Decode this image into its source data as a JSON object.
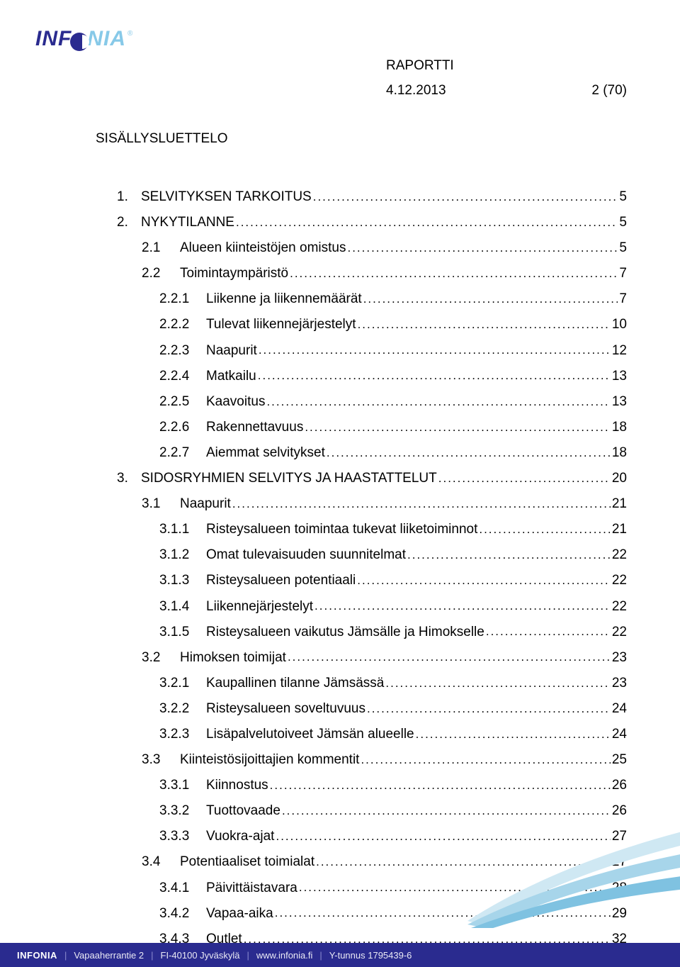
{
  "logo": {
    "left": "INF",
    "right": "NIA"
  },
  "header": {
    "title": "RAPORTTI",
    "date": "4.12.2013",
    "page": "2 (70)"
  },
  "section_title": "SISÄLLYSLUETTELO",
  "toc": [
    {
      "level": 1,
      "num": "1.",
      "label": "SELVITYKSEN TARKOITUS",
      "page": "5"
    },
    {
      "level": 1,
      "num": "2.",
      "label": "NYKYTILANNE",
      "page": "5"
    },
    {
      "level": 2,
      "num": "2.1",
      "label": "Alueen kiinteistöjen omistus",
      "page": "5"
    },
    {
      "level": 2,
      "num": "2.2",
      "label": "Toimintaympäristö",
      "page": "7"
    },
    {
      "level": 3,
      "num": "2.2.1",
      "label": "Liikenne ja liikennemäärät",
      "page": "7"
    },
    {
      "level": 3,
      "num": "2.2.2",
      "label": "Tulevat liikennejärjestelyt",
      "page": "10"
    },
    {
      "level": 3,
      "num": "2.2.3",
      "label": "Naapurit",
      "page": "12"
    },
    {
      "level": 3,
      "num": "2.2.4",
      "label": "Matkailu",
      "page": "13"
    },
    {
      "level": 3,
      "num": "2.2.5",
      "label": "Kaavoitus",
      "page": "13"
    },
    {
      "level": 3,
      "num": "2.2.6",
      "label": "Rakennettavuus",
      "page": "18"
    },
    {
      "level": 3,
      "num": "2.2.7",
      "label": "Aiemmat selvitykset",
      "page": "18"
    },
    {
      "level": 1,
      "num": "3.",
      "label": "SIDOSRYHMIEN SELVITYS JA HAASTATTELUT",
      "page": "20"
    },
    {
      "level": 2,
      "num": "3.1",
      "label": "Naapurit",
      "page": "21"
    },
    {
      "level": 3,
      "num": "3.1.1",
      "label": "Risteysalueen toimintaa tukevat liiketoiminnot",
      "page": "21"
    },
    {
      "level": 3,
      "num": "3.1.2",
      "label": "Omat tulevaisuuden suunnitelmat",
      "page": "22"
    },
    {
      "level": 3,
      "num": "3.1.3",
      "label": "Risteysalueen potentiaali",
      "page": "22"
    },
    {
      "level": 3,
      "num": "3.1.4",
      "label": "Liikennejärjestelyt",
      "page": "22"
    },
    {
      "level": 3,
      "num": "3.1.5",
      "label": "Risteysalueen vaikutus Jämsälle ja Himokselle",
      "page": "22"
    },
    {
      "level": 2,
      "num": "3.2",
      "label": "Himoksen toimijat",
      "page": "23"
    },
    {
      "level": 3,
      "num": "3.2.1",
      "label": "Kaupallinen tilanne Jämsässä",
      "page": "23"
    },
    {
      "level": 3,
      "num": "3.2.2",
      "label": "Risteysalueen soveltuvuus",
      "page": "24"
    },
    {
      "level": 3,
      "num": "3.2.3",
      "label": "Lisäpalvelutoiveet Jämsän alueelle",
      "page": "24"
    },
    {
      "level": 2,
      "num": "3.3",
      "label": "Kiinteistösijoittajien kommentit",
      "page": "25"
    },
    {
      "level": 3,
      "num": "3.3.1",
      "label": "Kiinnostus",
      "page": "26"
    },
    {
      "level": 3,
      "num": "3.3.2",
      "label": "Tuottovaade",
      "page": "26"
    },
    {
      "level": 3,
      "num": "3.3.3",
      "label": "Vuokra-ajat",
      "page": "27"
    },
    {
      "level": 2,
      "num": "3.4",
      "label": "Potentiaaliset toimialat",
      "page": "27"
    },
    {
      "level": 3,
      "num": "3.4.1",
      "label": "Päivittäistavara",
      "page": "28"
    },
    {
      "level": 3,
      "num": "3.4.2",
      "label": "Vapaa-aika",
      "page": "29"
    },
    {
      "level": 3,
      "num": "3.4.3",
      "label": "Outlet",
      "page": "32"
    }
  ],
  "footer": {
    "brand": "INFONIA",
    "addr": "Vapaaherrantie 2",
    "city": "FI-40100 Jyväskylä",
    "web": "www.infonia.fi",
    "vat": "Y-tunnus 1795439-6"
  },
  "style": {
    "brand_color": "#2a2b8f",
    "brand_light": "#87c9e8",
    "swoosh_colors": [
      "#cfe8f3",
      "#a7d5ea",
      "#7fc2e1"
    ],
    "fontsize_body": 19,
    "fontsize_footer": 13,
    "page_bg": "#ffffff",
    "text_color": "#000000"
  }
}
